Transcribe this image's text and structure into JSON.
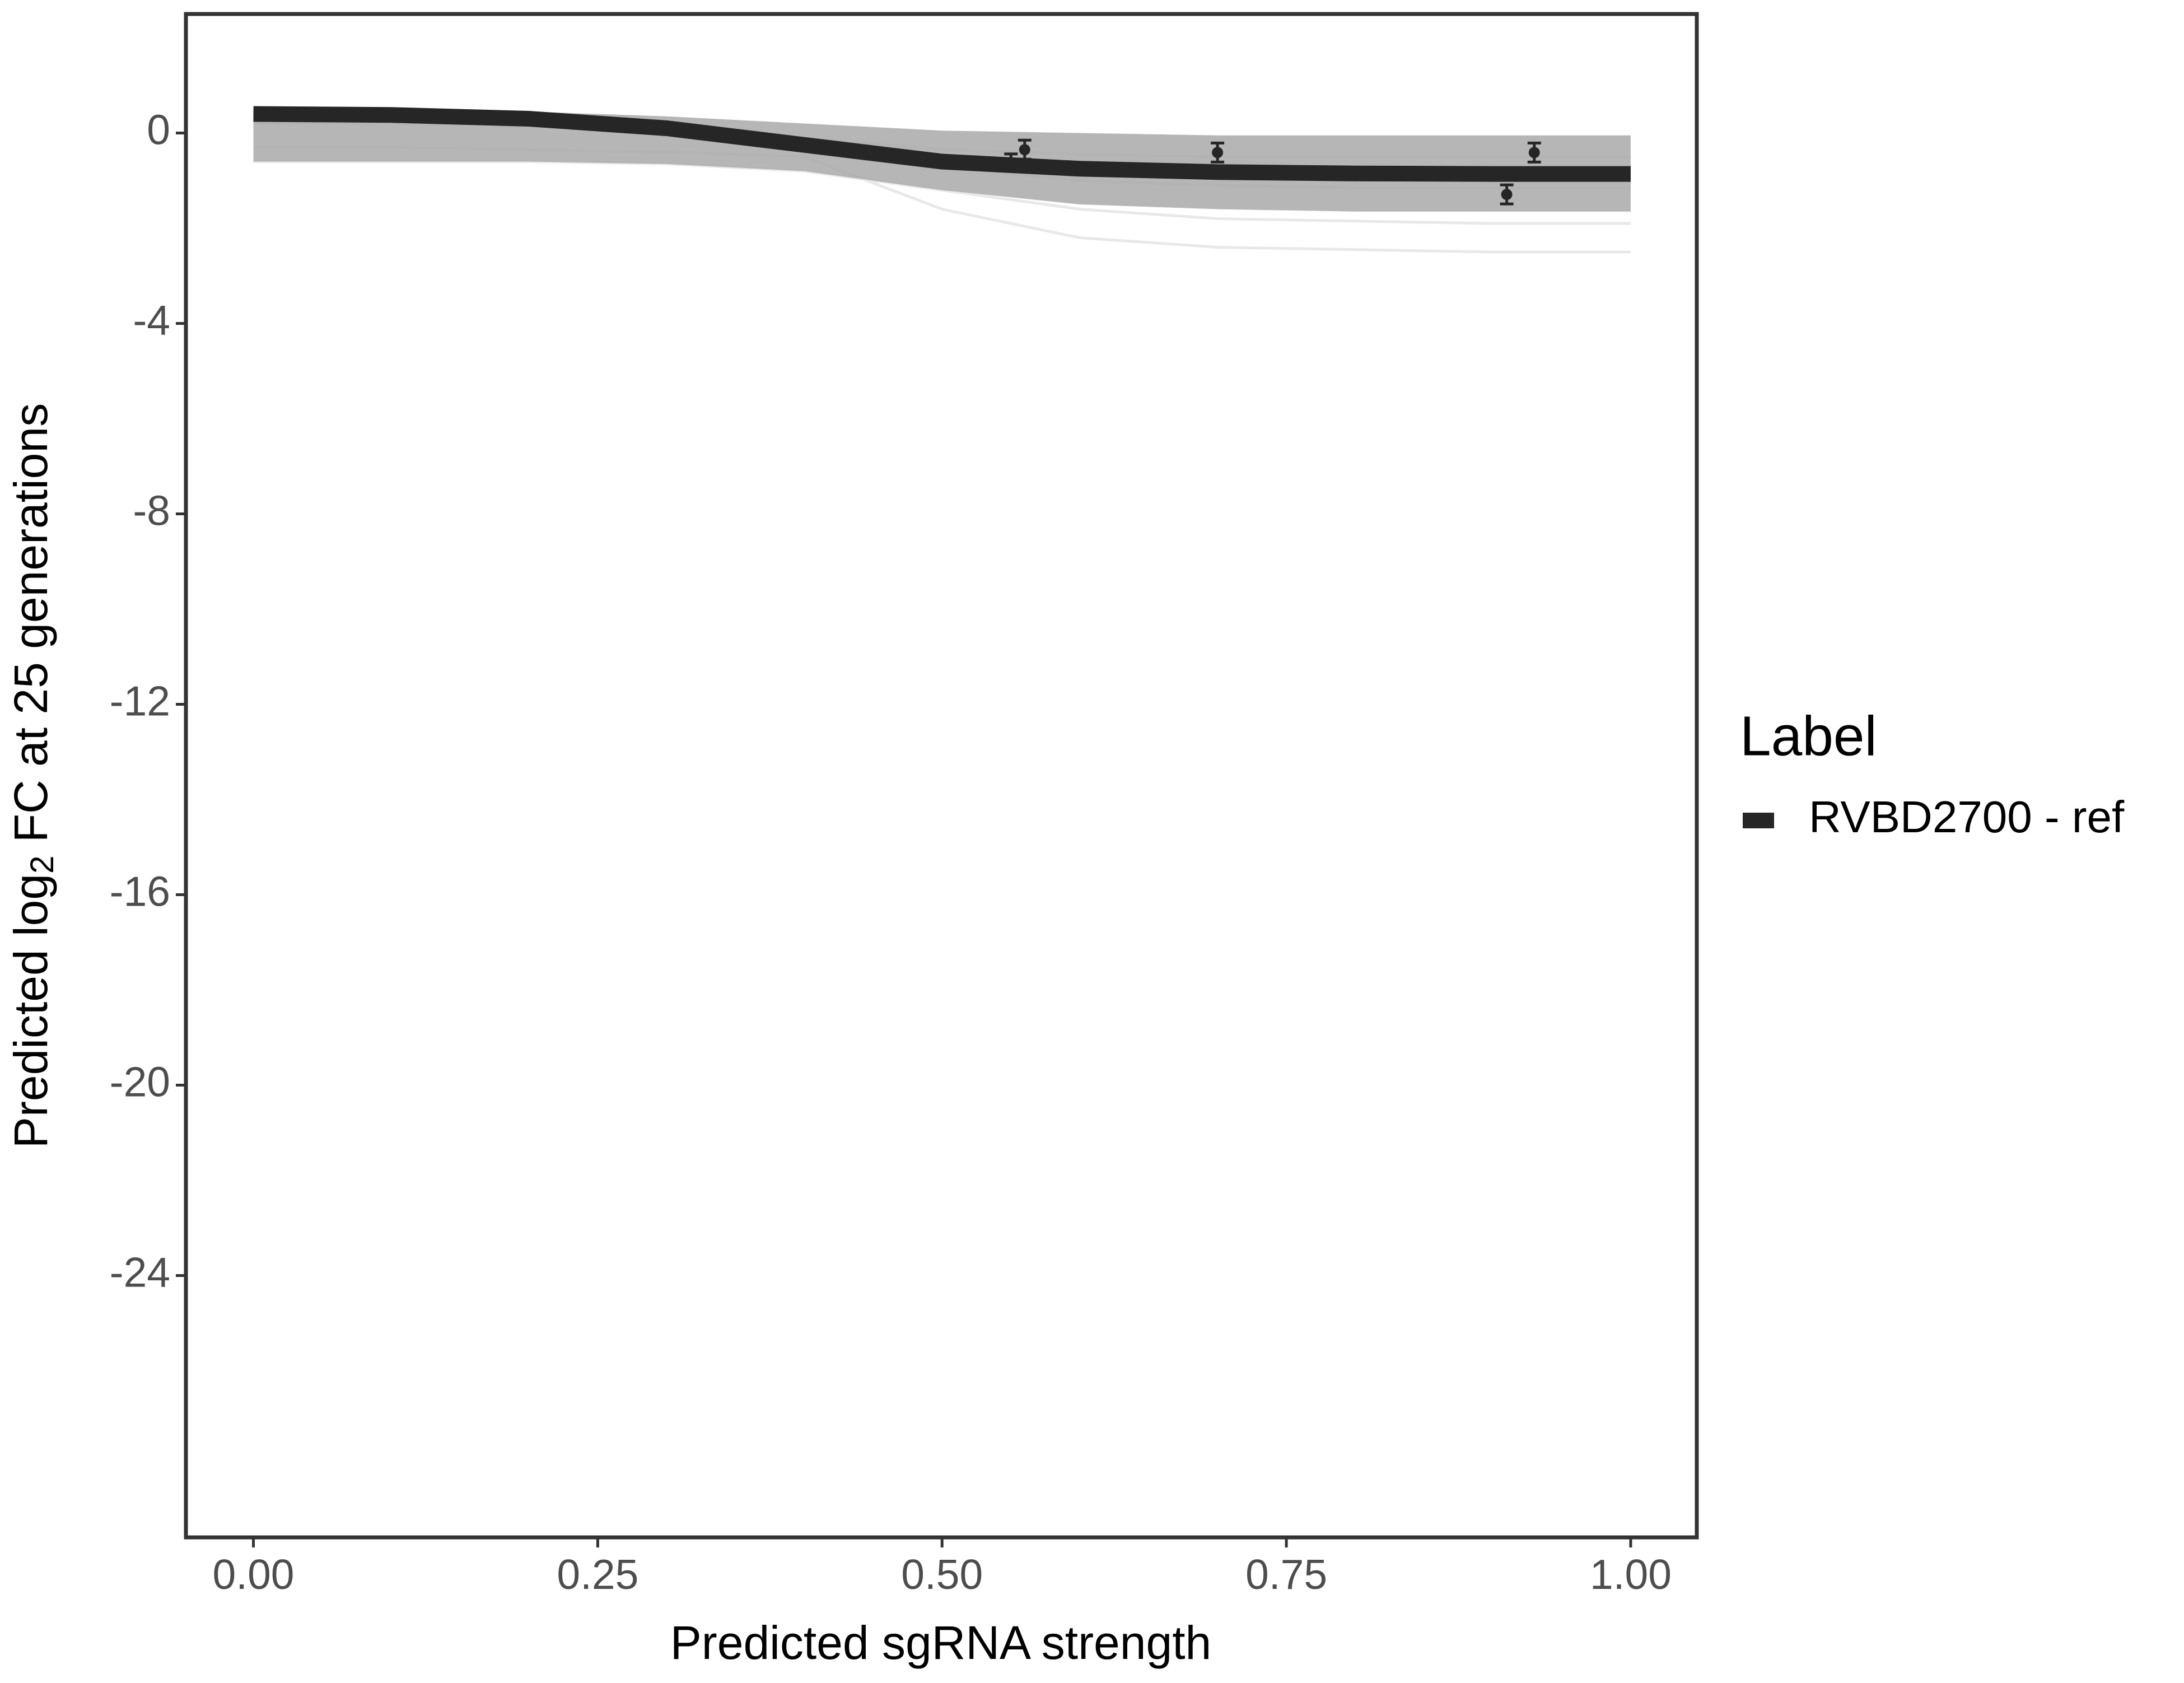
{
  "chart_data": {
    "type": "line",
    "xlabel": "Predicted sgRNA strength",
    "ylabel": {
      "prefix": "Predicted  log",
      "subscript": "2",
      "suffix": " FC at 25 generations"
    },
    "x": [
      0,
      0.1,
      0.2,
      0.3,
      0.4,
      0.5,
      0.6,
      0.7,
      0.8,
      0.9,
      1.0
    ],
    "series": [
      {
        "name": "RVBD2700 - ref",
        "color": "#262626",
        "values": [
          0.4,
          0.38,
          0.3,
          0.1,
          -0.25,
          -0.6,
          -0.75,
          -0.82,
          -0.85,
          -0.86,
          -0.86
        ]
      }
    ],
    "band": {
      "color": "#a9a9a9",
      "upper": [
        0.5,
        0.5,
        0.45,
        0.35,
        0.2,
        0.05,
        0,
        -0.05,
        -0.05,
        -0.05,
        -0.05
      ],
      "lower": [
        -0.6,
        -0.6,
        -0.6,
        -0.65,
        -0.8,
        -1.2,
        -1.5,
        -1.6,
        -1.65,
        -1.65,
        -1.65
      ]
    },
    "draws": {
      "color": "#e8e8e8",
      "lines": [
        [
          0.2,
          0.2,
          0.15,
          0,
          -0.3,
          -0.7,
          -1,
          -1.1,
          -1.15,
          -1.15,
          -1.15
        ],
        [
          -0.6,
          -0.6,
          -0.6,
          -0.65,
          -0.8,
          -1.2,
          -1.6,
          -1.8,
          -1.85,
          -1.9,
          -1.9
        ],
        [
          -0.3,
          -0.3,
          -0.35,
          -0.4,
          -0.5,
          -1.6,
          -2.2,
          -2.4,
          -2.45,
          -2.5,
          -2.5
        ],
        [
          0.3,
          0.3,
          0.25,
          0.15,
          -0.1,
          -0.35,
          -0.45,
          -0.5,
          -0.5,
          -0.5,
          -0.5
        ]
      ]
    },
    "points": {
      "color": "#262626",
      "x": [
        0.55,
        0.56,
        0.7,
        0.91,
        0.93
      ],
      "y": [
        -0.62,
        -0.35,
        -0.41,
        -1.29,
        -0.41
      ],
      "err": [
        0.18,
        0.2,
        0.2,
        0.2,
        0.2
      ]
    },
    "legend_title": "Label",
    "legend": "right",
    "xlim": [
      -0.049,
      1.048
    ],
    "ylim": [
      -29.5,
      2.5
    ],
    "xticks": [
      {
        "value": 0,
        "label": "0.00"
      },
      {
        "value": 0.25,
        "label": "0.25"
      },
      {
        "value": 0.5,
        "label": "0.50"
      },
      {
        "value": 0.75,
        "label": "0.75"
      },
      {
        "value": 1,
        "label": "1.00"
      }
    ],
    "yticks": [
      0,
      -4,
      -8,
      -12,
      -16,
      -20,
      -24
    ]
  }
}
